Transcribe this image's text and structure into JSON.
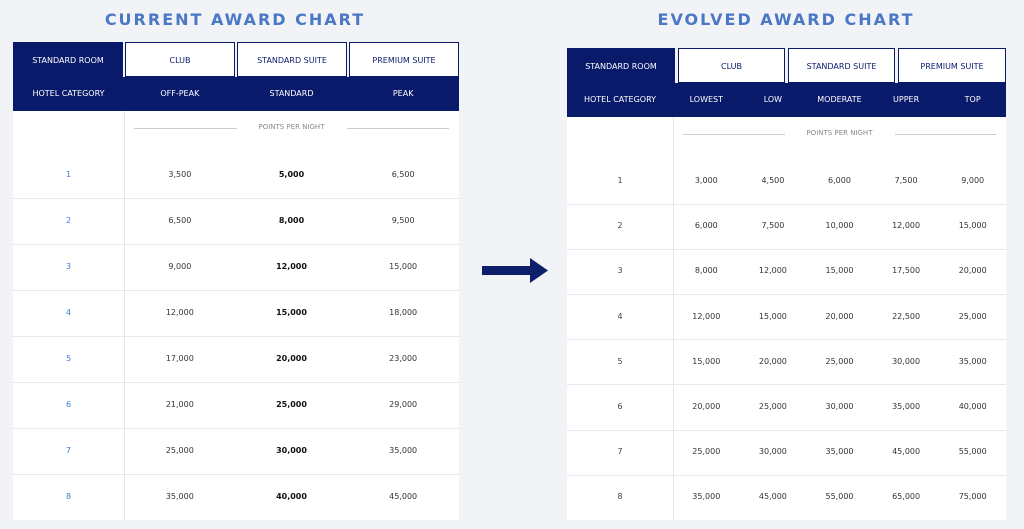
{
  "current": {
    "title": "CURRENT AWARD CHART",
    "tabs": [
      "STANDARD ROOM",
      "CLUB",
      "STANDARD SUITE",
      "PREMIUM SUITE"
    ],
    "header": [
      "HOTEL CATEGORY",
      "OFF-PEAK",
      "STANDARD",
      "PEAK"
    ],
    "subheader": "POINTS PER NIGHT",
    "rows": [
      [
        "1",
        "3,500",
        "5,000",
        "6,500"
      ],
      [
        "2",
        "6,500",
        "8,000",
        "9,500"
      ],
      [
        "3",
        "9,000",
        "12,000",
        "15,000"
      ],
      [
        "4",
        "12,000",
        "15,000",
        "18,000"
      ],
      [
        "5",
        "17,000",
        "20,000",
        "23,000"
      ],
      [
        "6",
        "21,000",
        "25,000",
        "29,000"
      ],
      [
        "7",
        "25,000",
        "30,000",
        "35,000"
      ],
      [
        "8",
        "35,000",
        "40,000",
        "45,000"
      ]
    ]
  },
  "evolved": {
    "title": "EVOLVED AWARD CHART",
    "tabs": [
      "STANDARD ROOM",
      "CLUB",
      "STANDARD SUITE",
      "PREMIUM SUITE"
    ],
    "header": [
      "HOTEL CATEGORY",
      "LOWEST",
      "LOW",
      "MODERATE",
      "UPPER",
      "TOP"
    ],
    "subheader": "POINTS PER NIGHT",
    "rows": [
      [
        "1",
        "3,000",
        "4,500",
        "6,000",
        "7,500",
        "9,000"
      ],
      [
        "2",
        "6,000",
        "7,500",
        "10,000",
        "12,000",
        "15,000"
      ],
      [
        "3",
        "8,000",
        "12,000",
        "15,000",
        "17,500",
        "20,000"
      ],
      [
        "4",
        "12,000",
        "15,000",
        "20,000",
        "22,500",
        "25,000"
      ],
      [
        "5",
        "15,000",
        "20,000",
        "25,000",
        "30,000",
        "35,000"
      ],
      [
        "6",
        "20,000",
        "25,000",
        "30,000",
        "35,000",
        "40,000"
      ],
      [
        "7",
        "25,000",
        "30,000",
        "35,000",
        "45,000",
        "55,000"
      ],
      [
        "8",
        "35,000",
        "45,000",
        "55,000",
        "65,000",
        "75,000"
      ]
    ]
  }
}
